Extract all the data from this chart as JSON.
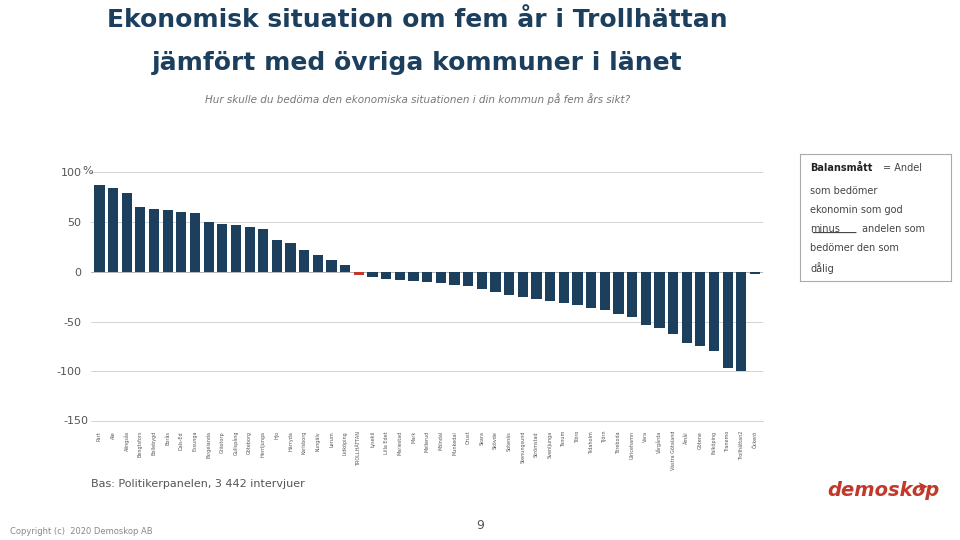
{
  "title_line1": "Ekonomisk situation om fem år i Trollhättan",
  "title_line2": "jämfört med övriga kommuner i länet",
  "subtitle": "Hur skulle du bedöma den ekonomiska situationen i din kommun på fem års sikt?",
  "ylabel": "%",
  "ylim": [
    -150,
    110
  ],
  "yticks": [
    -100,
    -50,
    0,
    50,
    100
  ],
  "footer_left": "Bas: Politikerpanelen, 3 442 intervjuer",
  "page_number": "9",
  "copyright": "Copyright (c)  2020 Demoskop AB",
  "values": [
    87,
    84,
    79,
    65,
    63,
    62,
    60,
    59,
    50,
    48,
    47,
    45,
    43,
    32,
    29,
    22,
    17,
    12,
    7,
    -3,
    -5,
    -7,
    -8,
    -9,
    -10,
    -11,
    -13,
    -14,
    -17,
    -20,
    -23,
    -25,
    -27,
    -29,
    -31,
    -33,
    -36,
    -38,
    -42,
    -45,
    -54,
    -57,
    -63,
    -72,
    -75,
    -80,
    -97,
    -100,
    -2
  ],
  "highlight_index": 19,
  "highlight_color": "#c0392b",
  "default_color": "#1c3f5e",
  "background_color": "#ffffff",
  "title_color": "#1c3f5e",
  "xlabel_labels": [
    "Part",
    "Ale",
    "Alingsås",
    "Bengtsfors",
    "Bollebygd",
    "Borås",
    "Dals-Ed",
    "Essunga",
    "Färgelanda",
    "Grästorp",
    "Gullspång",
    "Göteborg",
    "Herrljunga",
    "Hjo",
    "Härryda",
    "Karlsborg",
    "Kungälv",
    "Lerum",
    "Lidköping",
    "TROLLHÄTTAN",
    "Lysekil",
    "Lilla Edet",
    "Mariestad",
    "Mark",
    "Mellerud",
    "Mölndal",
    "Munkedal",
    "Orust",
    "Skara",
    "Skövde",
    "Sotenäs",
    "Stenungsund",
    "Strömstad",
    "Svenljunga",
    "Tanum",
    "Tibro",
    "Tidaholm",
    "Tjörn",
    "Töreboda",
    "Ulricehamn",
    "Vara",
    "Vårgårda",
    "Västra Götaland",
    "Åmål",
    "Götene",
    "Falköping",
    "Tranemo",
    "Trollhättan2",
    "Öckerö"
  ]
}
